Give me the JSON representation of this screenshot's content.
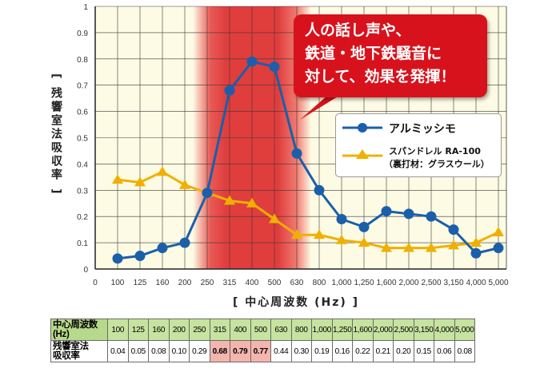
{
  "chart_data": {
    "type": "line",
    "categories": [
      "100",
      "125",
      "160",
      "200",
      "250",
      "315",
      "400",
      "500",
      "630",
      "800",
      "1,000",
      "1,250",
      "1,600",
      "2,000",
      "2,500",
      "3,150",
      "4,000",
      "5,000"
    ],
    "x_tick_labels": [
      "0",
      "100",
      "125",
      "160",
      "200",
      "250",
      "315",
      "400",
      "500",
      "630",
      "800",
      "1,000",
      "1,250",
      "1,600",
      "2,000",
      "2,500",
      "3,150",
      "4,000",
      "5,000"
    ],
    "y_tick_labels": [
      "0",
      "0.1",
      "0.2",
      "0.3",
      "0.4",
      "0.5",
      "0.6",
      "0.7",
      "0.8",
      "0.9",
      "1"
    ],
    "ylim": [
      0,
      1
    ],
    "grid": true,
    "xlabel": "[ 中心周波数 (Hz) ]",
    "ylabel": "[ 残響室法吸収率 ]",
    "highlight_range": [
      "250",
      "630"
    ],
    "legend_position": "right",
    "series": [
      {
        "name": "アルミッシモ",
        "color": "#1b5faa",
        "marker": "circle",
        "values": [
          0.04,
          0.05,
          0.08,
          0.1,
          0.29,
          0.68,
          0.79,
          0.77,
          0.44,
          0.3,
          0.19,
          0.16,
          0.22,
          0.21,
          0.2,
          0.15,
          0.06,
          0.08
        ]
      },
      {
        "name": "スパンドレル RA-100",
        "name_line2": "（裏打材：グラスウール）",
        "color": "#f0b000",
        "marker": "triangle",
        "values": [
          0.34,
          0.33,
          0.37,
          0.32,
          0.29,
          0.26,
          0.25,
          0.19,
          0.13,
          0.13,
          0.11,
          0.1,
          0.08,
          0.08,
          0.08,
          0.09,
          0.1,
          0.14
        ]
      }
    ]
  },
  "callout": {
    "lines": [
      "人の話し声や、",
      "鉄道・地下鉄騒音に",
      "対して、効果を発揮！"
    ],
    "color": "#d8121c"
  },
  "table": {
    "row1_header": [
      "中心周波数",
      "(Hz)"
    ],
    "row2_header": [
      "残響室法",
      "吸収率"
    ],
    "frequencies": [
      "100",
      "125",
      "160",
      "200",
      "250",
      "315",
      "400",
      "500",
      "630",
      "800",
      "1,000",
      "1,250",
      "1,600",
      "2,000",
      "2,500",
      "3,150",
      "4,000",
      "5,000"
    ],
    "values": [
      "0.04",
      "0.05",
      "0.08",
      "0.10",
      "0.29",
      "0.68",
      "0.79",
      "0.77",
      "0.44",
      "0.30",
      "0.19",
      "0.16",
      "0.22",
      "0.21",
      "0.20",
      "0.15",
      "0.06",
      "0.08"
    ],
    "highlighted": [
      "315",
      "400",
      "500"
    ]
  }
}
